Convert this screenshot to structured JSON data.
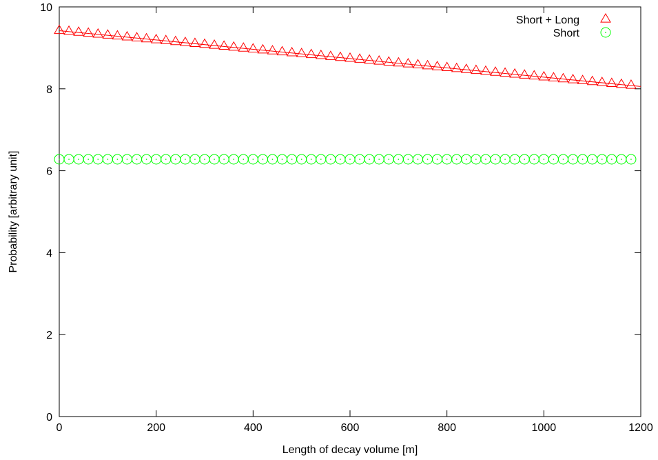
{
  "chart_data": {
    "type": "scatter",
    "xlabel": "Length of decay volume [m]",
    "ylabel": "Probability [arbitrary unit]",
    "xlim": [
      0,
      1200
    ],
    "ylim": [
      0,
      10
    ],
    "xticks": [
      0,
      200,
      400,
      600,
      800,
      1000,
      1200
    ],
    "yticks": [
      0,
      2,
      4,
      6,
      8,
      10
    ],
    "grid": false,
    "legend_position": "top-right",
    "series": [
      {
        "name": "Short + Long",
        "marker": "triangle",
        "color": "#ff0000",
        "x_start": 0,
        "x_step": 20,
        "count": 60,
        "y_start": 9.42,
        "y_end": 8.08,
        "trend_line": true
      },
      {
        "name": "Short",
        "marker": "circle-dot",
        "color": "#00ff00",
        "x_start": 0,
        "x_step": 20,
        "count": 60,
        "y_constant": 6.28
      }
    ]
  }
}
